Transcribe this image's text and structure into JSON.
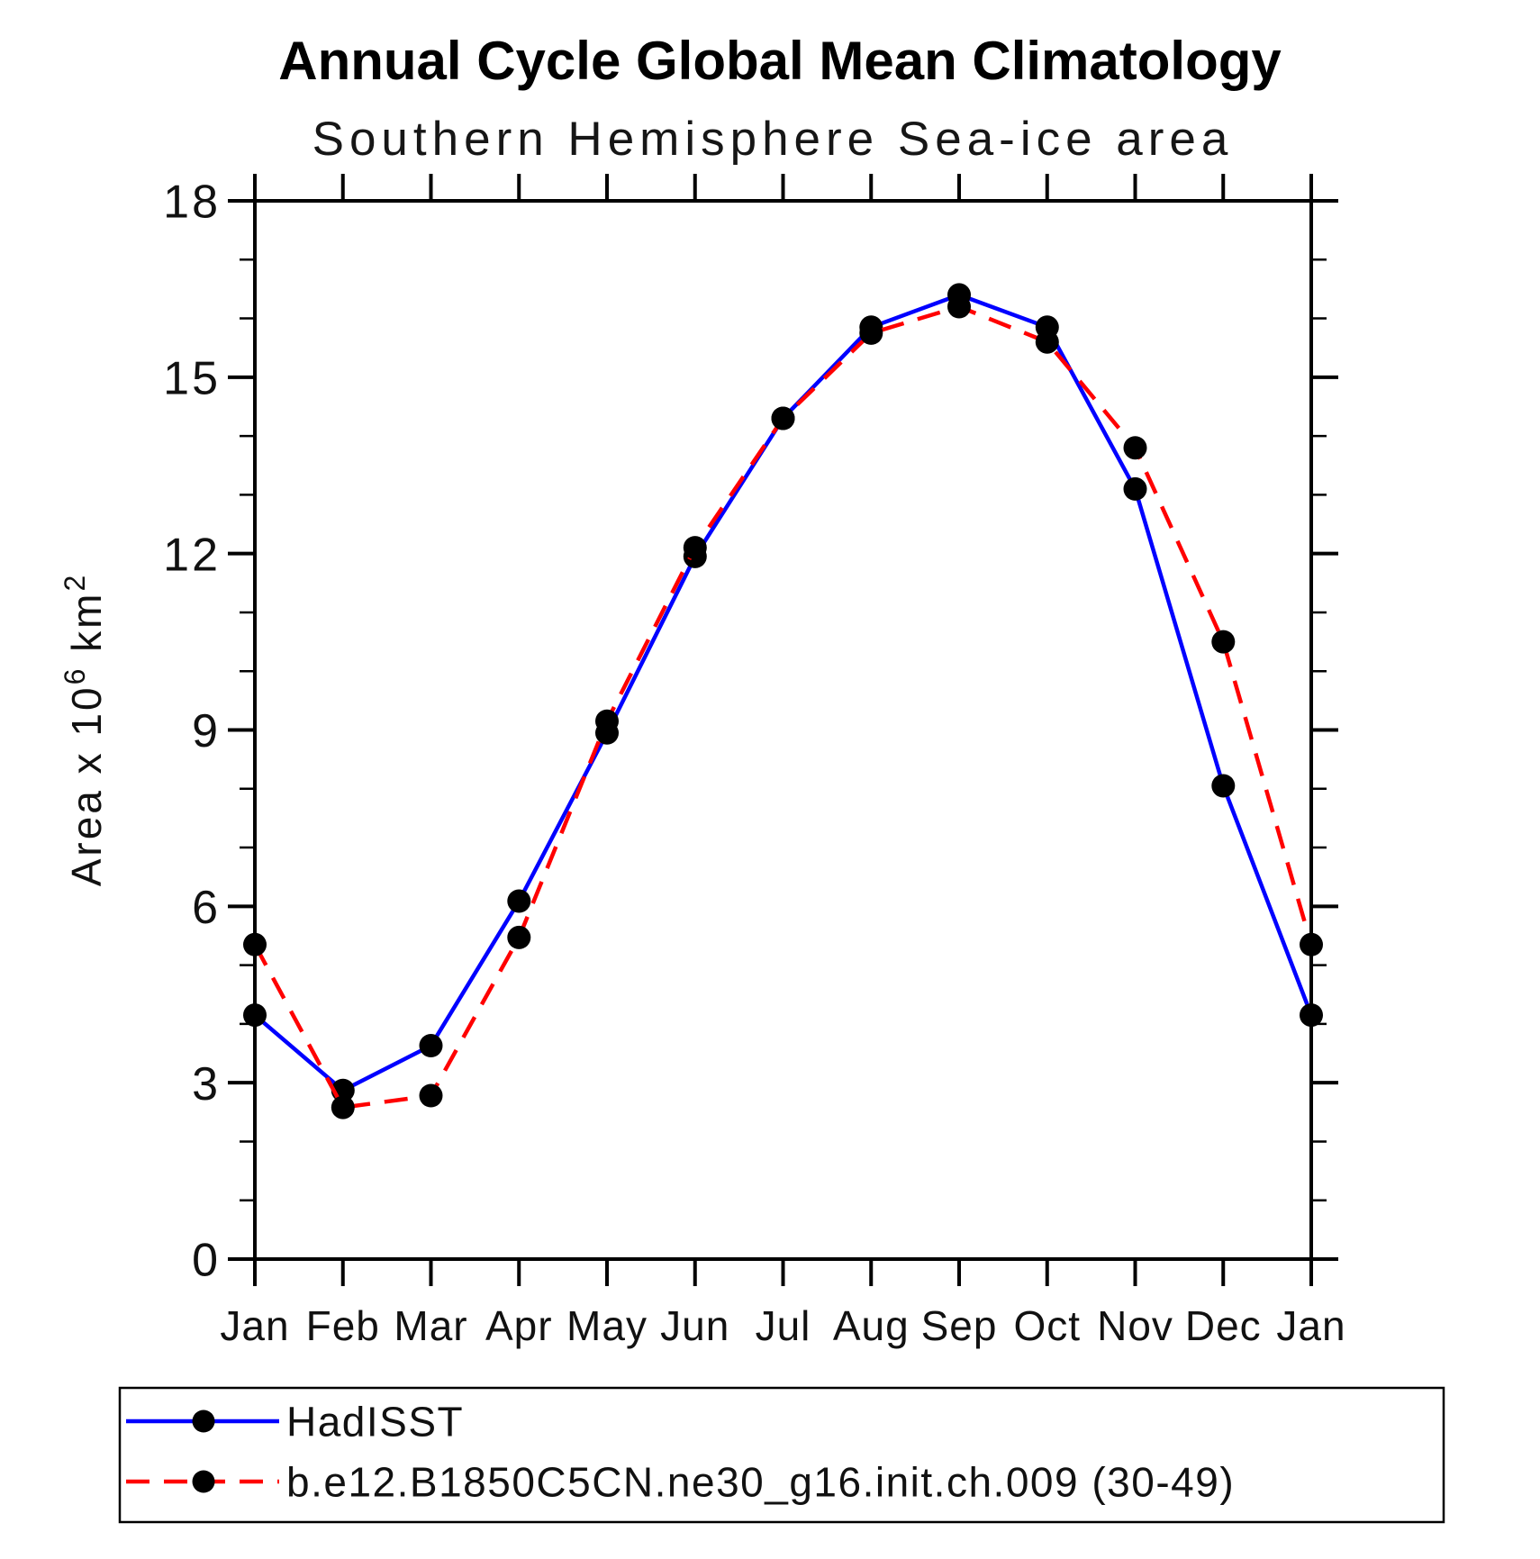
{
  "chart_data": {
    "type": "line",
    "title": "Annual Cycle Global Mean Climatology",
    "subtitle": "Southern Hemisphere Sea-ice area",
    "ylabel": "Area x 10^6 km^2",
    "ylabel_parts": [
      {
        "text": "Area x 10",
        "sup": false
      },
      {
        "text": "6",
        "sup": true
      },
      {
        "text": " km",
        "sup": false
      },
      {
        "text": "2",
        "sup": true
      }
    ],
    "x_categories": [
      "Jan",
      "Feb",
      "Mar",
      "Apr",
      "May",
      "Jun",
      "Jul",
      "Aug",
      "Sep",
      "Oct",
      "Nov",
      "Dec",
      "Jan"
    ],
    "ylim": [
      0,
      18
    ],
    "y_major_ticks": [
      0,
      3,
      6,
      9,
      12,
      15,
      18
    ],
    "y_minor_step": 1,
    "grid": false,
    "legend_position": "bottom-left-box",
    "series": [
      {
        "name": "HadISST",
        "color": "#0000ff",
        "line_style": "solid",
        "marker": "circle",
        "marker_color": "#000000",
        "values": [
          4.15,
          2.87,
          3.63,
          6.09,
          8.95,
          11.95,
          14.3,
          15.85,
          16.4,
          15.85,
          13.1,
          8.05,
          4.15
        ]
      },
      {
        "name": "b.e12.B1850C5CN.ne30_g16.init.ch.009 (30-49)",
        "color": "#ff0000",
        "line_style": "dashed",
        "marker": "circle",
        "marker_color": "#000000",
        "values": [
          5.35,
          2.58,
          2.78,
          5.47,
          9.15,
          12.1,
          14.3,
          15.75,
          16.2,
          15.6,
          13.8,
          10.5,
          5.35
        ]
      }
    ]
  },
  "colors": {
    "axis": "#000000",
    "background": "#ffffff",
    "text": "#111111",
    "series_blue": "#0000ff",
    "series_red": "#ff0000",
    "marker": "#000000"
  }
}
